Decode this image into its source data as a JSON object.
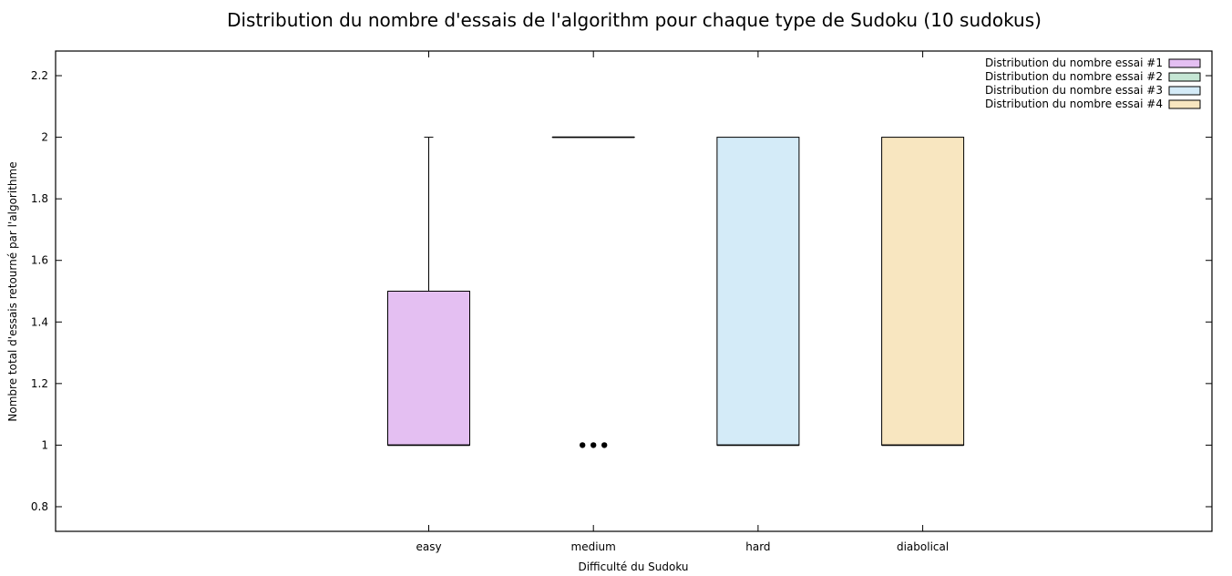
{
  "chart_data": {
    "type": "box",
    "title": "Distribution du nombre d'essais de l'algorithm pour chaque type de Sudoku (10 sudokus)",
    "xlabel": "Difficulté du Sudoku",
    "ylabel": "Nombre total d'essais retourné par l'algorithme",
    "categories": [
      "easy",
      "medium",
      "hard",
      "diabolical"
    ],
    "ylim": [
      0.72,
      2.28
    ],
    "yticks": [
      0.8,
      1,
      1.2,
      1.4,
      1.6,
      1.8,
      2,
      2.2
    ],
    "ytick_labels": [
      "0.8",
      "1",
      "1.2",
      "1.4",
      "1.6",
      "1.8",
      "2",
      "2.2"
    ],
    "legend_position": "top-right",
    "series": [
      {
        "name": "Distribution du nombre essai #1",
        "color": "#e4bff2",
        "category": "easy",
        "min": 1,
        "q1": 1,
        "median": 1,
        "q3": 1.5,
        "max": 2,
        "outliers": []
      },
      {
        "name": "Distribution du nombre essai #2",
        "color": "#c5e6d4",
        "category": "medium",
        "min": 2,
        "q1": 2,
        "median": 2,
        "q3": 2,
        "max": 2,
        "outliers": [
          1,
          1,
          1
        ]
      },
      {
        "name": "Distribution du nombre essai #3",
        "color": "#d4ebf8",
        "category": "hard",
        "min": 1,
        "q1": 1,
        "median": 1,
        "q3": 2,
        "max": 2,
        "outliers": []
      },
      {
        "name": "Distribution du nombre essai #4",
        "color": "#f8e6c0",
        "category": "diabolical",
        "min": 1,
        "q1": 1,
        "median": 1,
        "q3": 2,
        "max": 2,
        "outliers": []
      }
    ]
  }
}
